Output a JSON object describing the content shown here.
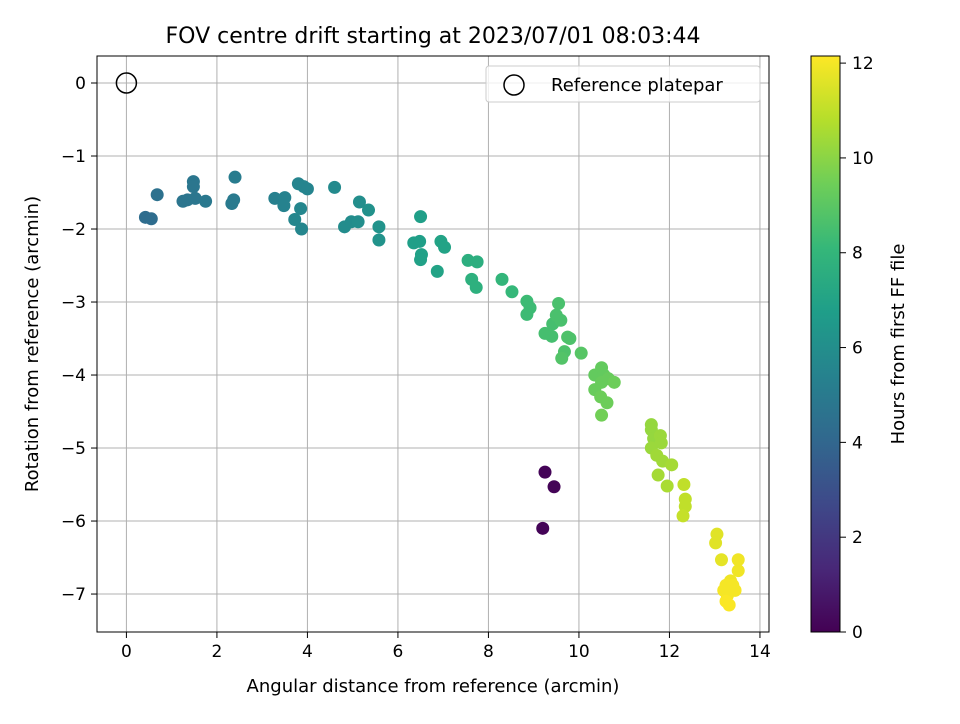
{
  "chart_data": {
    "type": "scatter",
    "title": "FOV centre drift starting at 2023/07/01 08:03:44",
    "xlabel": "Angular distance from reference (arcmin)",
    "ylabel": "Rotation from reference (arcmin)",
    "xlim": [
      -0.65,
      14.2
    ],
    "ylim": [
      -7.52,
      0.37
    ],
    "xticks": [
      "0",
      "2",
      "4",
      "6",
      "8",
      "10",
      "12",
      "14"
    ],
    "xtick_values": [
      0,
      2,
      4,
      6,
      8,
      10,
      12,
      14
    ],
    "yticks": [
      "0",
      "−1",
      "−2",
      "−3",
      "−4",
      "−5",
      "−6",
      "−7"
    ],
    "ytick_values": [
      0,
      -1,
      -2,
      -3,
      -4,
      -5,
      -6,
      -7
    ],
    "grid": true,
    "legend": {
      "placement": "top-right",
      "entries": [
        {
          "label": "Reference platepar",
          "marker": "open-circle"
        }
      ]
    },
    "reference_point": {
      "x": 0,
      "y": 0
    },
    "colorbar": {
      "label": "Hours from first FF file",
      "range": [
        0,
        12.15
      ],
      "ticks": [
        "0",
        "2",
        "4",
        "6",
        "8",
        "10",
        "12"
      ],
      "tick_values": [
        0,
        2,
        4,
        6,
        8,
        10,
        12
      ],
      "colormap": [
        "#440154",
        "#482878",
        "#3e4989",
        "#31688e",
        "#26828e",
        "#1f9e89",
        "#35b779",
        "#6ece58",
        "#b5de2b",
        "#fde725"
      ]
    },
    "points": [
      {
        "x": 9.25,
        "y": -5.33,
        "c": 0.1
      },
      {
        "x": 9.45,
        "y": -5.53,
        "c": 0.1
      },
      {
        "x": 9.2,
        "y": -6.1,
        "c": 0.1
      },
      {
        "x": 0.42,
        "y": -1.84,
        "c": 4.3
      },
      {
        "x": 0.55,
        "y": -1.86,
        "c": 4.3
      },
      {
        "x": 0.68,
        "y": -1.53,
        "c": 4.5
      },
      {
        "x": 1.25,
        "y": -1.62,
        "c": 4.7
      },
      {
        "x": 1.35,
        "y": -1.6,
        "c": 4.7
      },
      {
        "x": 1.48,
        "y": -1.35,
        "c": 4.8
      },
      {
        "x": 1.48,
        "y": -1.42,
        "c": 4.8
      },
      {
        "x": 1.52,
        "y": -1.58,
        "c": 4.8
      },
      {
        "x": 1.75,
        "y": -1.62,
        "c": 4.9
      },
      {
        "x": 2.33,
        "y": -1.65,
        "c": 5.0
      },
      {
        "x": 2.37,
        "y": -1.6,
        "c": 5.0
      },
      {
        "x": 2.4,
        "y": -1.29,
        "c": 5.1
      },
      {
        "x": 3.28,
        "y": -1.58,
        "c": 5.3
      },
      {
        "x": 3.5,
        "y": -1.57,
        "c": 5.4
      },
      {
        "x": 3.48,
        "y": -1.68,
        "c": 5.4
      },
      {
        "x": 3.8,
        "y": -1.38,
        "c": 5.5
      },
      {
        "x": 3.92,
        "y": -1.42,
        "c": 5.5
      },
      {
        "x": 4.0,
        "y": -1.45,
        "c": 5.5
      },
      {
        "x": 3.72,
        "y": -1.87,
        "c": 5.6
      },
      {
        "x": 3.85,
        "y": -1.72,
        "c": 5.6
      },
      {
        "x": 3.87,
        "y": -2.0,
        "c": 5.6
      },
      {
        "x": 4.6,
        "y": -1.43,
        "c": 5.8
      },
      {
        "x": 4.82,
        "y": -1.97,
        "c": 5.9
      },
      {
        "x": 4.97,
        "y": -1.9,
        "c": 5.9
      },
      {
        "x": 5.12,
        "y": -1.9,
        "c": 6.0
      },
      {
        "x": 5.15,
        "y": -1.63,
        "c": 6.0
      },
      {
        "x": 5.35,
        "y": -1.74,
        "c": 6.1
      },
      {
        "x": 5.58,
        "y": -1.97,
        "c": 6.2
      },
      {
        "x": 5.58,
        "y": -2.15,
        "c": 6.2
      },
      {
        "x": 6.5,
        "y": -1.83,
        "c": 6.8
      },
      {
        "x": 6.35,
        "y": -2.19,
        "c": 6.8
      },
      {
        "x": 6.48,
        "y": -2.17,
        "c": 6.8
      },
      {
        "x": 6.52,
        "y": -2.35,
        "c": 6.9
      },
      {
        "x": 6.5,
        "y": -2.42,
        "c": 6.9
      },
      {
        "x": 6.95,
        "y": -2.17,
        "c": 7.0
      },
      {
        "x": 7.03,
        "y": -2.25,
        "c": 7.0
      },
      {
        "x": 6.87,
        "y": -2.58,
        "c": 7.0
      },
      {
        "x": 7.55,
        "y": -2.43,
        "c": 7.6
      },
      {
        "x": 7.75,
        "y": -2.45,
        "c": 7.6
      },
      {
        "x": 7.63,
        "y": -2.69,
        "c": 7.7
      },
      {
        "x": 7.73,
        "y": -2.8,
        "c": 7.7
      },
      {
        "x": 8.3,
        "y": -2.69,
        "c": 8.0
      },
      {
        "x": 8.52,
        "y": -2.86,
        "c": 8.1
      },
      {
        "x": 8.85,
        "y": -2.99,
        "c": 8.3
      },
      {
        "x": 8.92,
        "y": -3.08,
        "c": 8.3
      },
      {
        "x": 8.85,
        "y": -3.17,
        "c": 8.3
      },
      {
        "x": 9.25,
        "y": -3.43,
        "c": 8.5
      },
      {
        "x": 9.4,
        "y": -3.47,
        "c": 8.5
      },
      {
        "x": 9.42,
        "y": -3.3,
        "c": 8.5
      },
      {
        "x": 9.5,
        "y": -3.18,
        "c": 8.6
      },
      {
        "x": 9.55,
        "y": -3.02,
        "c": 8.6
      },
      {
        "x": 9.6,
        "y": -3.25,
        "c": 8.6
      },
      {
        "x": 9.75,
        "y": -3.48,
        "c": 8.7
      },
      {
        "x": 9.8,
        "y": -3.5,
        "c": 8.7
      },
      {
        "x": 9.68,
        "y": -3.68,
        "c": 8.7
      },
      {
        "x": 9.62,
        "y": -3.77,
        "c": 8.8
      },
      {
        "x": 10.05,
        "y": -3.7,
        "c": 8.9
      },
      {
        "x": 10.35,
        "y": -4.0,
        "c": 9.2
      },
      {
        "x": 10.5,
        "y": -3.9,
        "c": 9.2
      },
      {
        "x": 10.55,
        "y": -4.0,
        "c": 9.2
      },
      {
        "x": 10.35,
        "y": -4.2,
        "c": 9.3
      },
      {
        "x": 10.5,
        "y": -4.1,
        "c": 9.3
      },
      {
        "x": 10.65,
        "y": -4.05,
        "c": 9.3
      },
      {
        "x": 10.78,
        "y": -4.1,
        "c": 9.4
      },
      {
        "x": 10.48,
        "y": -4.3,
        "c": 9.4
      },
      {
        "x": 10.62,
        "y": -4.38,
        "c": 9.4
      },
      {
        "x": 10.5,
        "y": -4.55,
        "c": 9.5
      },
      {
        "x": 11.6,
        "y": -4.68,
        "c": 10.2
      },
      {
        "x": 11.6,
        "y": -4.75,
        "c": 10.2
      },
      {
        "x": 11.65,
        "y": -4.87,
        "c": 10.2
      },
      {
        "x": 11.8,
        "y": -4.83,
        "c": 10.3
      },
      {
        "x": 11.82,
        "y": -4.93,
        "c": 10.3
      },
      {
        "x": 11.6,
        "y": -5.0,
        "c": 10.3
      },
      {
        "x": 11.72,
        "y": -5.1,
        "c": 10.4
      },
      {
        "x": 11.85,
        "y": -5.18,
        "c": 10.4
      },
      {
        "x": 12.05,
        "y": -5.23,
        "c": 10.5
      },
      {
        "x": 11.75,
        "y": -5.37,
        "c": 10.5
      },
      {
        "x": 11.95,
        "y": -5.52,
        "c": 10.6
      },
      {
        "x": 12.32,
        "y": -5.5,
        "c": 11.0
      },
      {
        "x": 12.35,
        "y": -5.7,
        "c": 11.0
      },
      {
        "x": 12.35,
        "y": -5.8,
        "c": 11.0
      },
      {
        "x": 12.3,
        "y": -5.93,
        "c": 11.1
      },
      {
        "x": 13.05,
        "y": -6.18,
        "c": 11.6
      },
      {
        "x": 13.02,
        "y": -6.3,
        "c": 11.6
      },
      {
        "x": 13.15,
        "y": -6.53,
        "c": 11.7
      },
      {
        "x": 13.52,
        "y": -6.53,
        "c": 11.9
      },
      {
        "x": 13.52,
        "y": -6.68,
        "c": 11.9
      },
      {
        "x": 13.35,
        "y": -6.82,
        "c": 11.9
      },
      {
        "x": 13.25,
        "y": -6.88,
        "c": 12.0
      },
      {
        "x": 13.4,
        "y": -6.88,
        "c": 12.0
      },
      {
        "x": 13.45,
        "y": -6.95,
        "c": 12.0
      },
      {
        "x": 13.2,
        "y": -6.95,
        "c": 12.0
      },
      {
        "x": 13.28,
        "y": -7.02,
        "c": 12.0
      },
      {
        "x": 13.25,
        "y": -7.1,
        "c": 12.1
      },
      {
        "x": 13.32,
        "y": -7.15,
        "c": 12.1
      }
    ]
  }
}
